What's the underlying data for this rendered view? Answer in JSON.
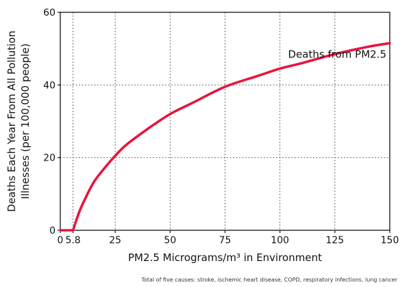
{
  "chart_data": {
    "type": "line",
    "xlabel": "PM2.5 Micrograms/m³ in Environment",
    "ylabel_line1": "Deaths Each Year From All Pollution",
    "ylabel_line2": "Illnesses (per 100,000 people)",
    "xlim": [
      0,
      150
    ],
    "ylim": [
      0,
      60
    ],
    "x_ticks": [
      0,
      5.8,
      25,
      50,
      75,
      100,
      125,
      150
    ],
    "x_tick_labels": [
      "0",
      "5.8",
      "25",
      "50",
      "75",
      "100",
      "125",
      "150"
    ],
    "y_ticks": [
      0,
      20,
      40,
      60
    ],
    "y_tick_labels": [
      "0",
      "20",
      "40",
      "60"
    ],
    "grid": true,
    "series": [
      {
        "name": "Deaths from PM2.5",
        "color": "#e8143c",
        "x": [
          0,
          3,
          5.8,
          8,
          10,
          15,
          20,
          25,
          30,
          40,
          50,
          60,
          75,
          90,
          100,
          110,
          125,
          140,
          150
        ],
        "y": [
          0,
          0,
          0,
          4,
          7,
          13,
          17,
          20.5,
          23.5,
          28,
          32,
          35,
          39.5,
          42.5,
          44.5,
          46,
          48.5,
          50.5,
          51.5
        ]
      }
    ],
    "footnote": "Total of five causes: stroke, ischemic heart disease, COPD, respiratory infections, lung cancer"
  }
}
